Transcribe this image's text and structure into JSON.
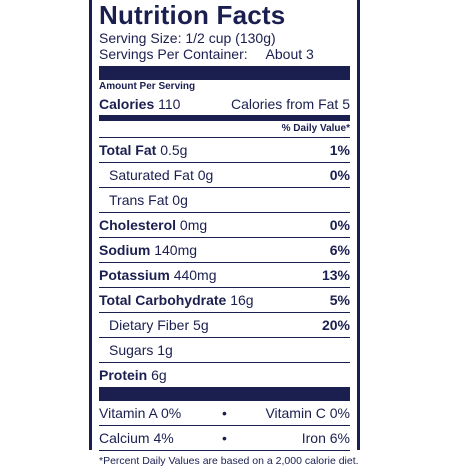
{
  "title": "Nutrition Facts",
  "serving_size": "Serving Size: 1/2 cup (130g)",
  "servings_per_container_label": "Servings Per Container:",
  "servings_per_container_value": "About 3",
  "amount_per_serving": "Amount Per Serving",
  "calories": {
    "label": "Calories",
    "value": "110",
    "from_fat": "Calories from Fat 5"
  },
  "dv_header": "% Daily Value*",
  "nutrients": [
    {
      "name": "Total Fat",
      "amount": "0.5g",
      "dv": "1%"
    },
    {
      "name": "Saturated Fat",
      "amount": "0g",
      "dv": "0%"
    },
    {
      "name": "Trans Fat",
      "amount": "0g",
      "dv": ""
    },
    {
      "name": "Cholesterol",
      "amount": "0mg",
      "dv": "0%"
    },
    {
      "name": "Sodium",
      "amount": "140mg",
      "dv": "6%"
    },
    {
      "name": "Potassium",
      "amount": "440mg",
      "dv": "13%"
    },
    {
      "name": "Total Carbohydrate",
      "amount": "16g",
      "dv": "5%"
    },
    {
      "name": "Dietary Fiber",
      "amount": "5g",
      "dv": "20%"
    },
    {
      "name": "Sugars",
      "amount": "1g",
      "dv": ""
    },
    {
      "name": "Protein",
      "amount": "6g",
      "dv": ""
    }
  ],
  "vitamins": [
    {
      "left": "Vitamin A 0%",
      "right": "Vitamin C 0%"
    },
    {
      "left": "Calcium 4%",
      "right": "Iron 6%"
    }
  ],
  "bullet": "•",
  "footnote": "*Percent Daily Values are based on a 2,000 calorie diet."
}
